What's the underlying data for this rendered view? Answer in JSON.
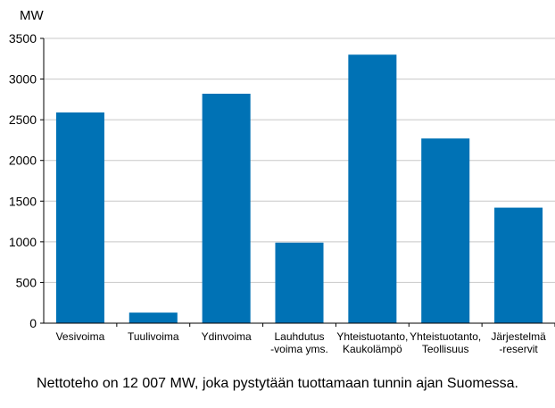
{
  "chart_data": {
    "type": "bar",
    "ylabel": "MW",
    "ylim": [
      0,
      3500
    ],
    "yticks": [
      0,
      500,
      1000,
      1500,
      2000,
      2500,
      3000,
      3500
    ],
    "grid": true,
    "color": "#0072b5",
    "categories": [
      [
        "Vesivoima"
      ],
      [
        "Tuulivoima"
      ],
      [
        "Ydinvoima"
      ],
      [
        "Lauhdutus",
        "-voima yms."
      ],
      [
        "Yhteistuotanto,",
        "Kaukolämpö"
      ],
      [
        "Yhteistuotanto,",
        "Teollisuus"
      ],
      [
        "Järjestelmä",
        "-reservit"
      ]
    ],
    "values": [
      2590,
      130,
      2820,
      990,
      3300,
      2270,
      1420
    ]
  },
  "caption": "Nettoteho  on 12 007 MW, joka pystytään tuottamaan  tunnin ajan Suomessa."
}
